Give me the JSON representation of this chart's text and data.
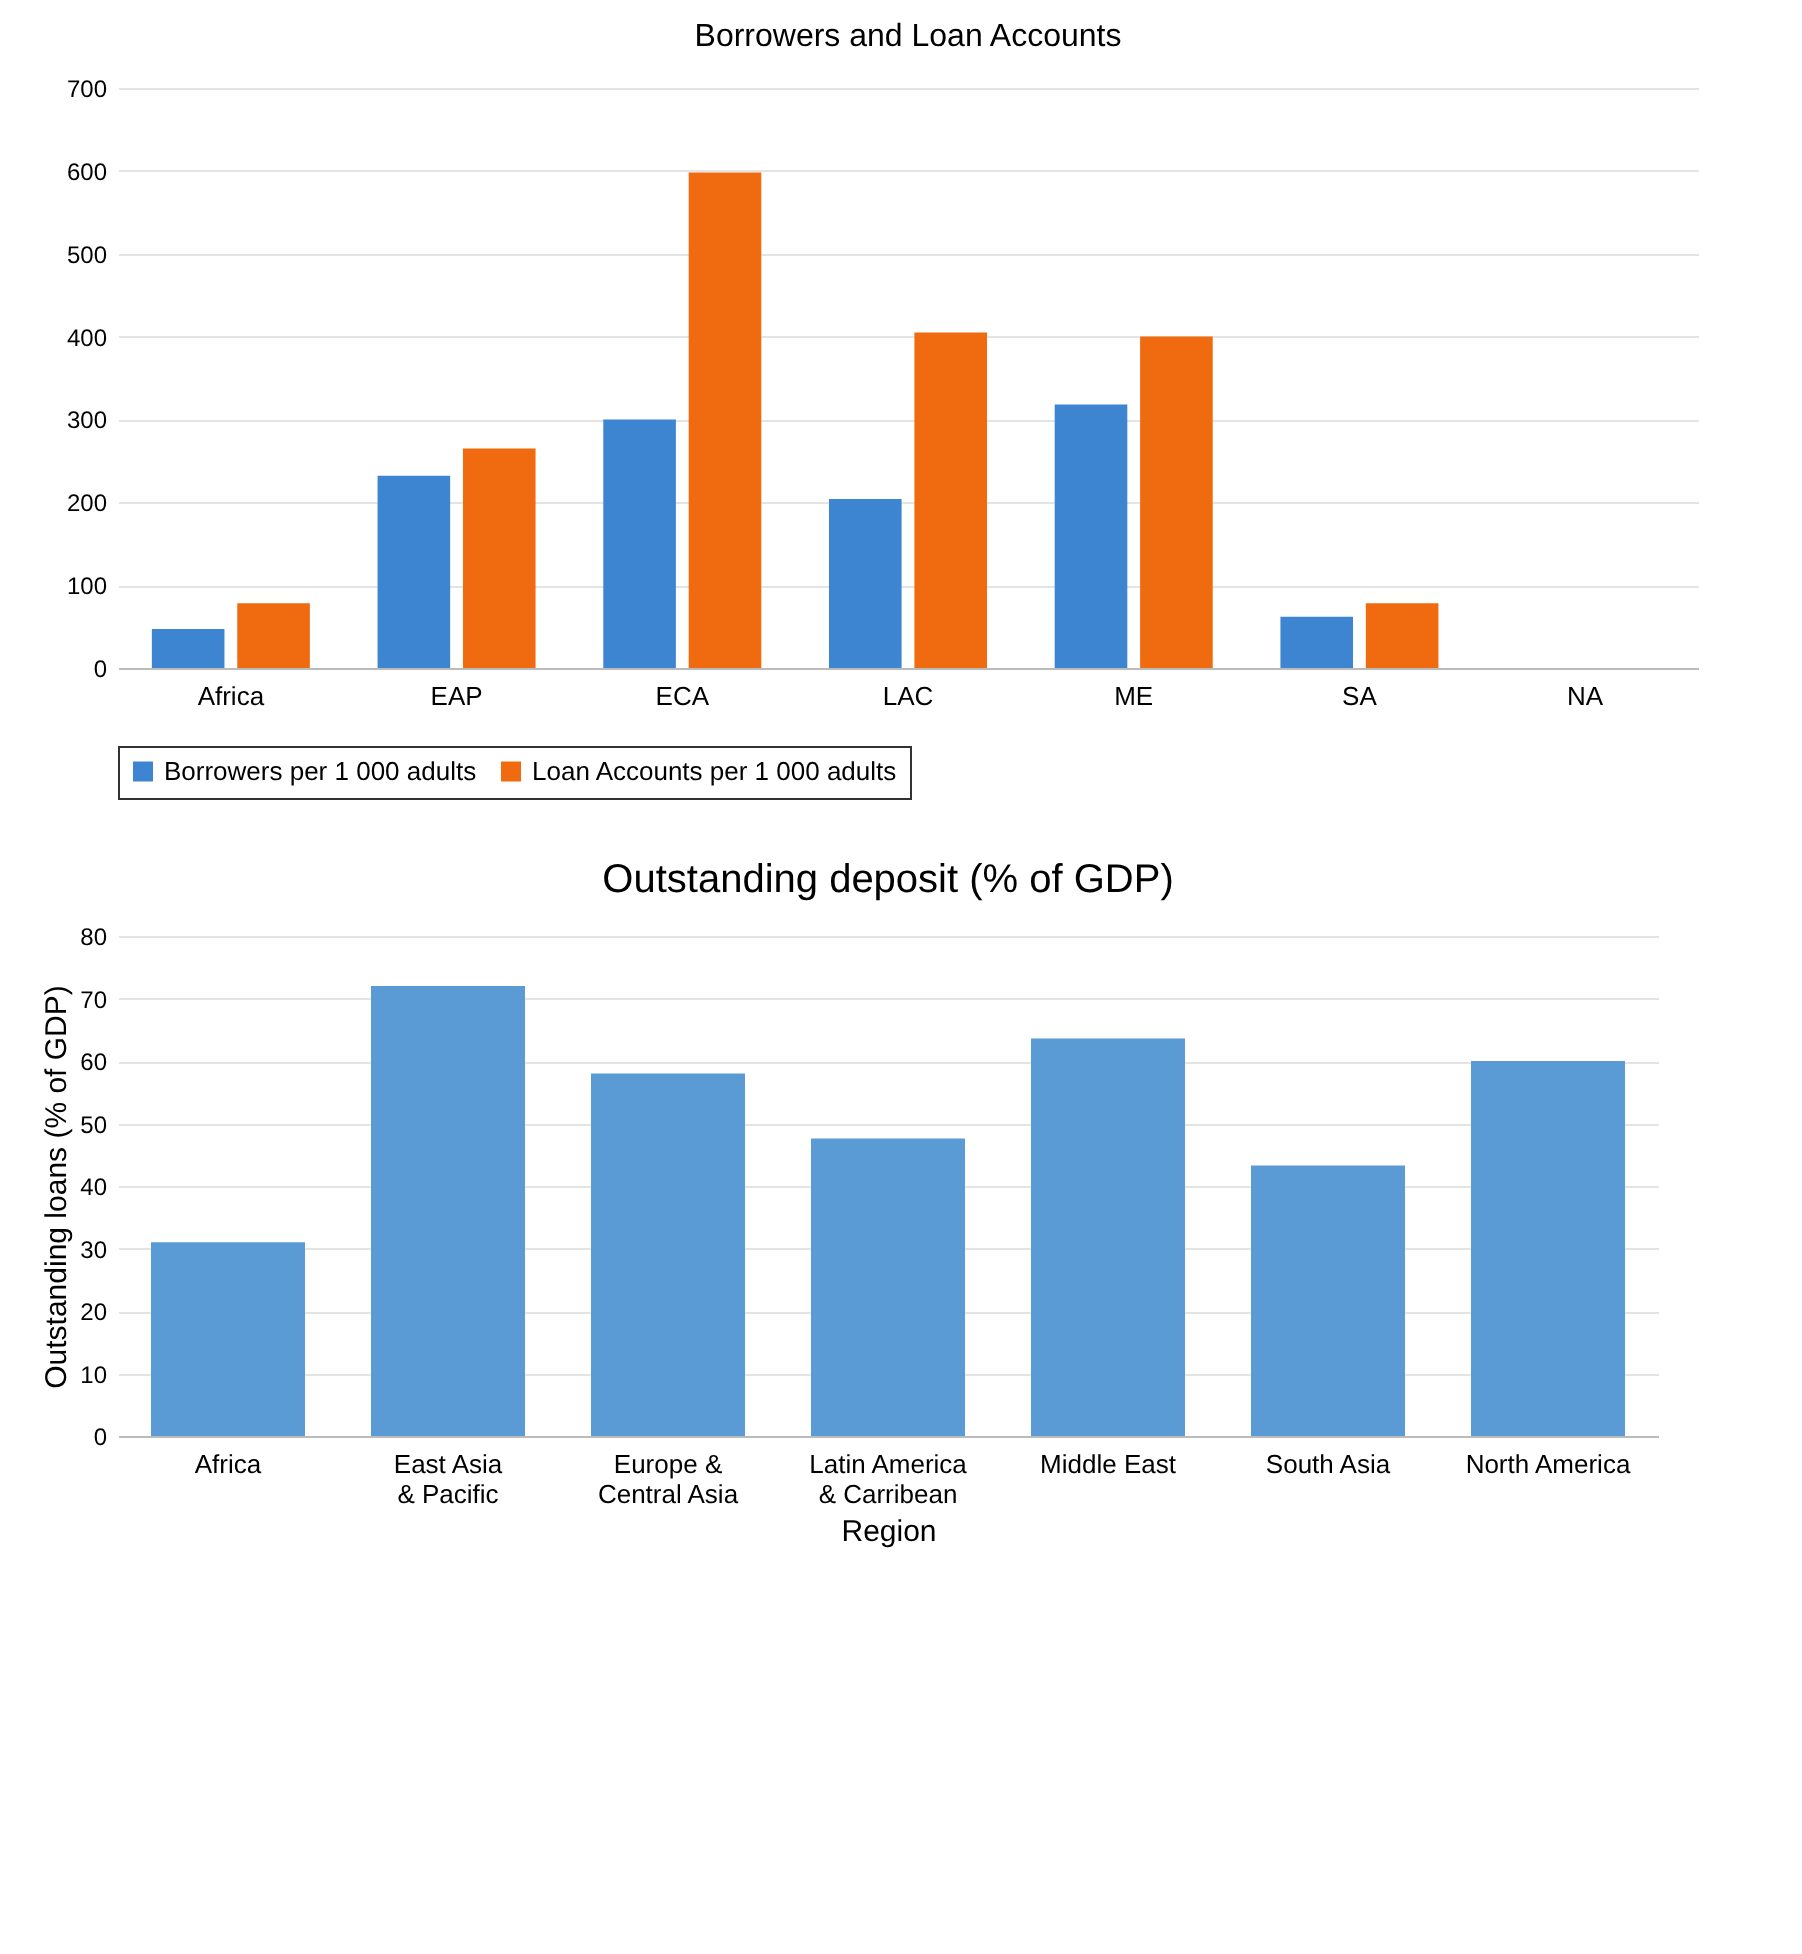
{
  "chart_data": [
    {
      "type": "bar",
      "title": "Borrowers and Loan Accounts",
      "categories": [
        "Africa",
        "EAP",
        "ECA",
        "LAC",
        "ME",
        "SA",
        "NA"
      ],
      "series": [
        {
          "name": "Borrowers per 1 000 adults",
          "color": "#3d85d0",
          "values": [
            47,
            232,
            300,
            204,
            318,
            62,
            null
          ]
        },
        {
          "name": "Loan Accounts per 1 000 adults",
          "color": "#f06a10",
          "values": [
            78,
            265,
            598,
            405,
            400,
            78,
            null
          ]
        }
      ],
      "ylim": [
        0,
        700
      ],
      "yticks": [
        0,
        100,
        200,
        300,
        400,
        500,
        600,
        700
      ],
      "grid": "y",
      "legend": "bottom"
    },
    {
      "type": "bar",
      "title": "Outstanding deposit (% of GDP)",
      "xlabel": "Region",
      "ylabel": "Outstanding loans (% of GDP)",
      "categories": [
        "Africa",
        "East Asia & Pacific",
        "Europe & Central Asia",
        "Latin America & Carribean",
        "Middle East",
        "South Asia",
        "North America"
      ],
      "series": [
        {
          "color": "#5b9bd5",
          "values": [
            31,
            72,
            58,
            47.6,
            63.6,
            43.3,
            60
          ]
        }
      ],
      "ylim": [
        0,
        80
      ],
      "yticks": [
        0,
        10,
        20,
        30,
        40,
        50,
        60,
        70,
        80
      ],
      "grid": "y"
    }
  ]
}
